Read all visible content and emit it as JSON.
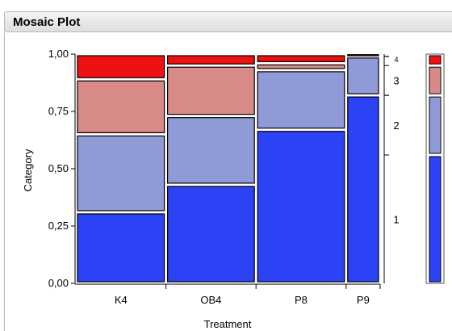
{
  "panel": {
    "title": "Mosaic Plot"
  },
  "colors": {
    "category_1": "#2b43f5",
    "category_2": "#909ad6",
    "category_3": "#d78a87",
    "category_4": "#ee1111",
    "cell_border": "#ffffff",
    "cell_outline": "#000000",
    "panel_border": "#b9b9b9"
  },
  "chart_data": {
    "type": "mosaic",
    "xlabel": "Treatment",
    "ylabel": "Category",
    "ylim": [
      0,
      1
    ],
    "y_ticks": [
      "0,00",
      "0,25",
      "0,50",
      "0,75",
      "1,00"
    ],
    "categories": [
      "K4",
      "OB4",
      "P8",
      "P9"
    ],
    "column_widths": [
      0.296,
      0.296,
      0.296,
      0.112
    ],
    "series": [
      {
        "name": "1",
        "values": [
          0.31,
          0.43,
          0.67,
          0.82
        ]
      },
      {
        "name": "2",
        "values": [
          0.34,
          0.3,
          0.26,
          0.17
        ]
      },
      {
        "name": "3",
        "values": [
          0.24,
          0.22,
          0.03,
          0.0
        ]
      },
      {
        "name": "4",
        "values": [
          0.11,
          0.05,
          0.04,
          0.01
        ]
      }
    ],
    "right_axis_labels": [
      "1",
      "2",
      "3",
      "4"
    ],
    "legend": {
      "category_shares": [
        0.56,
        0.26,
        0.13,
        0.05
      ],
      "placement": "right"
    }
  }
}
